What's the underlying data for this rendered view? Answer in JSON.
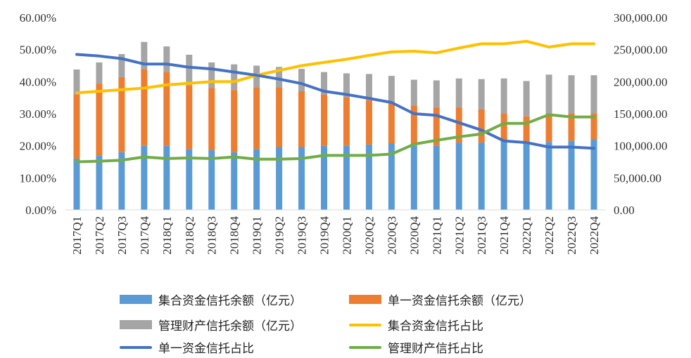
{
  "chart_data": {
    "type": "bar+line",
    "title": "",
    "categories": [
      "2017Q1",
      "2017Q2",
      "2017Q3",
      "2017Q4",
      "2018Q1",
      "2018Q2",
      "2018Q3",
      "2018Q4",
      "2019Q1",
      "2019Q2",
      "2019Q3",
      "2019Q4",
      "2020Q1",
      "2020Q2",
      "2020Q3",
      "2020Q4",
      "2021Q1",
      "2021Q2",
      "2021Q3",
      "2021Q4",
      "2022Q1",
      "2022Q2",
      "2022Q3",
      "2022Q4"
    ],
    "left_axis": {
      "ylim": [
        0,
        60
      ],
      "ticks": [
        "0.00%",
        "10.00%",
        "20.00%",
        "30.00%",
        "40.00%",
        "50.00%",
        "60.00%"
      ]
    },
    "right_axis": {
      "ylim": [
        0,
        300000
      ],
      "ticks": [
        "0.00",
        "50,000.00",
        "100,000.00",
        "150,000.00",
        "200,000.00",
        "250,000.00",
        "300,000.00"
      ]
    },
    "bar_series": [
      {
        "name": "集合资金信托余额（亿元）",
        "color": "#5b9bd5",
        "axis": "right",
        "values": [
          80000,
          85000,
          90000,
          100000,
          100000,
          95000,
          93000,
          90000,
          95000,
          98000,
          98000,
          100000,
          100000,
          102000,
          104000,
          100000,
          100000,
          105000,
          105000,
          108000,
          104000,
          106000,
          108000,
          110000
        ]
      },
      {
        "name": "单一资金信托余额（亿元）",
        "color": "#ed7d31",
        "axis": "right",
        "values": [
          100000,
          112000,
          117000,
          119000,
          115000,
          99000,
          97000,
          97000,
          96000,
          93000,
          87000,
          80000,
          76000,
          69000,
          62000,
          63000,
          60000,
          55000,
          52000,
          42000,
          42000,
          45000,
          42000,
          40000
        ]
      },
      {
        "name": "管理财产信托余额（亿元）",
        "color": "#a5a5a5",
        "axis": "right",
        "values": [
          39000,
          33000,
          36000,
          43000,
          40000,
          48000,
          40000,
          40000,
          34000,
          32000,
          35000,
          35000,
          37000,
          41000,
          43000,
          40000,
          42000,
          45000,
          47000,
          55000,
          55000,
          60000,
          60000,
          60000
        ]
      }
    ],
    "line_series": [
      {
        "name": "集合资金信托占比",
        "color": "#ffc000",
        "axis": "left",
        "values": [
          36.5,
          37.0,
          37.5,
          38.0,
          39.0,
          39.5,
          40.0,
          40.0,
          42.0,
          43.5,
          45.0,
          46.0,
          47.0,
          48.2,
          49.3,
          49.5,
          49.0,
          50.5,
          51.8,
          51.8,
          52.6,
          50.8,
          51.8,
          51.8
        ]
      },
      {
        "name": "单一资金信托占比",
        "color": "#4472c4",
        "axis": "left",
        "values": [
          48.5,
          48.0,
          47.2,
          45.5,
          45.5,
          44.5,
          44.0,
          43.0,
          42.0,
          40.8,
          39.4,
          37.0,
          36.0,
          34.8,
          33.5,
          30.0,
          29.5,
          27.2,
          24.9,
          21.5,
          21.0,
          19.6,
          19.6,
          19.2
        ]
      },
      {
        "name": "管理财产信托占比",
        "color": "#70ad47",
        "axis": "left",
        "values": [
          15.0,
          15.2,
          15.5,
          16.5,
          16.0,
          16.2,
          16.0,
          16.5,
          15.8,
          15.8,
          16.0,
          17.0,
          17.0,
          17.0,
          17.4,
          20.5,
          21.7,
          22.8,
          23.7,
          27.0,
          27.0,
          29.7,
          29.0,
          29.0
        ]
      }
    ],
    "legend": [
      {
        "label": "集合资金信托余额（亿元）",
        "kind": "bar",
        "color": "#5b9bd5"
      },
      {
        "label": "单一资金信托余额（亿元）",
        "kind": "bar",
        "color": "#ed7d31"
      },
      {
        "label": "管理财产信托余额（亿元）",
        "kind": "bar",
        "color": "#a5a5a5"
      },
      {
        "label": "集合资金信托占比",
        "kind": "line",
        "color": "#ffc000"
      },
      {
        "label": "单一资金信托占比",
        "kind": "line",
        "color": "#4472c4"
      },
      {
        "label": "管理财产信托占比",
        "kind": "line",
        "color": "#70ad47"
      }
    ],
    "grid": false,
    "legend_position": "bottom"
  }
}
